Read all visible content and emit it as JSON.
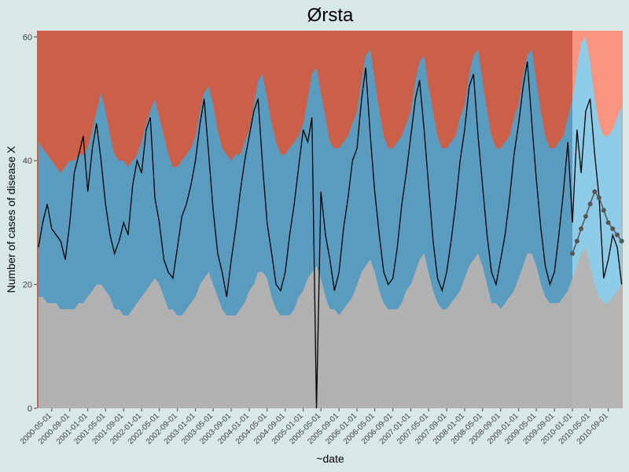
{
  "chart_data": {
    "type": "threshold-area",
    "title": "Ørsta",
    "xlabel": "~date",
    "ylabel": "Number of cases of disease X",
    "ylim": [
      0,
      61
    ],
    "yticks": [
      0,
      20,
      40,
      60
    ],
    "xlim": [
      "2000-01-22",
      "2010-12-08"
    ],
    "xticks": [
      "2000-05-01",
      "2000-09-01",
      "2001-01-01",
      "2001-05-01",
      "2001-09-01",
      "2002-01-01",
      "2002-05-01",
      "2002-09-01",
      "2003-01-01",
      "2003-05-01",
      "2003-09-01",
      "2004-01-01",
      "2004-05-01",
      "2004-09-01",
      "2005-01-01",
      "2005-05-01",
      "2005-09-01",
      "2006-01-01",
      "2006-05-01",
      "2006-09-01",
      "2007-01-01",
      "2007-05-01",
      "2007-09-01",
      "2008-01-01",
      "2008-05-01",
      "2008-09-01",
      "2009-01-01",
      "2009-05-01",
      "2009-09-01",
      "2010-01-01",
      "2010-05-01",
      "2010-09-01"
    ],
    "forecast_start": "2010-01-01",
    "colors": {
      "above": "#cb5f48",
      "band": "#5a9cc0",
      "below": "#b1b1b1",
      "above_forecast": "#f7957f",
      "band_forecast": "#8ecbe6",
      "below_forecast": "#b5b5b5",
      "line": "#000000",
      "forecast_points": "#555555"
    },
    "x": [
      "2000-02-01",
      "2000-03-01",
      "2000-04-01",
      "2000-05-01",
      "2000-06-01",
      "2000-07-01",
      "2000-08-01",
      "2000-09-01",
      "2000-10-01",
      "2000-11-01",
      "2000-12-01",
      "2001-01-01",
      "2001-02-01",
      "2001-03-01",
      "2001-04-01",
      "2001-05-01",
      "2001-06-01",
      "2001-07-01",
      "2001-08-01",
      "2001-09-01",
      "2001-10-01",
      "2001-11-01",
      "2001-12-01",
      "2002-01-01",
      "2002-02-01",
      "2002-03-01",
      "2002-04-01",
      "2002-05-01",
      "2002-06-01",
      "2002-07-01",
      "2002-08-01",
      "2002-09-01",
      "2002-10-01",
      "2002-11-01",
      "2002-12-01",
      "2003-01-01",
      "2003-02-01",
      "2003-03-01",
      "2003-04-01",
      "2003-05-01",
      "2003-06-01",
      "2003-07-01",
      "2003-08-01",
      "2003-09-01",
      "2003-10-01",
      "2003-11-01",
      "2003-12-01",
      "2004-01-01",
      "2004-02-01",
      "2004-03-01",
      "2004-04-01",
      "2004-05-01",
      "2004-06-01",
      "2004-07-01",
      "2004-08-01",
      "2004-09-01",
      "2004-10-01",
      "2004-11-01",
      "2004-12-01",
      "2005-01-01",
      "2005-02-01",
      "2005-03-01",
      "2005-04-01",
      "2005-05-01",
      "2005-06-01",
      "2005-07-01",
      "2005-08-01",
      "2005-09-01",
      "2005-10-01",
      "2005-11-01",
      "2005-12-01",
      "2006-01-01",
      "2006-02-01",
      "2006-03-01",
      "2006-04-01",
      "2006-05-01",
      "2006-06-01",
      "2006-07-01",
      "2006-08-01",
      "2006-09-01",
      "2006-10-01",
      "2006-11-01",
      "2006-12-01",
      "2007-01-01",
      "2007-02-01",
      "2007-03-01",
      "2007-04-01",
      "2007-05-01",
      "2007-06-01",
      "2007-07-01",
      "2007-08-01",
      "2007-09-01",
      "2007-10-01",
      "2007-11-01",
      "2007-12-01",
      "2008-01-01",
      "2008-02-01",
      "2008-03-01",
      "2008-04-01",
      "2008-05-01",
      "2008-06-01",
      "2008-07-01",
      "2008-08-01",
      "2008-09-01",
      "2008-10-01",
      "2008-11-01",
      "2008-12-01",
      "2009-01-01",
      "2009-02-01",
      "2009-03-01",
      "2009-04-01",
      "2009-05-01",
      "2009-06-01",
      "2009-07-01",
      "2009-08-01",
      "2009-09-01",
      "2009-10-01",
      "2009-11-01",
      "2009-12-01",
      "2010-01-01",
      "2010-02-01",
      "2010-03-01",
      "2010-04-01",
      "2010-05-01",
      "2010-06-01",
      "2010-07-01",
      "2010-08-01",
      "2010-09-01",
      "2010-10-01",
      "2010-11-01",
      "2010-12-01"
    ],
    "upper": [
      43,
      42,
      41,
      40,
      39,
      38,
      39,
      40,
      40,
      41,
      41,
      42,
      45,
      48,
      51,
      48,
      44,
      41,
      40,
      40,
      39,
      40,
      41,
      43,
      46,
      48,
      50,
      47,
      44,
      41,
      39,
      39,
      40,
      41,
      42,
      44,
      48,
      51,
      52,
      49,
      45,
      42,
      41,
      40,
      41,
      41,
      43,
      45,
      49,
      53,
      54,
      50,
      46,
      43,
      41,
      41,
      42,
      43,
      44,
      46,
      50,
      54,
      55,
      51,
      47,
      43,
      42,
      42,
      43,
      44,
      46,
      48,
      53,
      57,
      58,
      53,
      48,
      44,
      42,
      42,
      43,
      44,
      46,
      48,
      53,
      56,
      57,
      52,
      48,
      44,
      42,
      42,
      43,
      44,
      47,
      49,
      54,
      57,
      58,
      53,
      48,
      44,
      42,
      42,
      43,
      44,
      47,
      49,
      54,
      57,
      58,
      53,
      48,
      44,
      42,
      42,
      43,
      44,
      47,
      50,
      55,
      59,
      60,
      56,
      50,
      46,
      44,
      44,
      45,
      47,
      49
    ],
    "lower": [
      18,
      18,
      17,
      17,
      17,
      16,
      16,
      16,
      16,
      17,
      17,
      18,
      19,
      20,
      20,
      19,
      18,
      16,
      16,
      15,
      15,
      16,
      17,
      18,
      19,
      20,
      21,
      20,
      18,
      16,
      16,
      15,
      15,
      16,
      17,
      18,
      20,
      21,
      22,
      20,
      18,
      16,
      15,
      15,
      15,
      16,
      17,
      19,
      20,
      22,
      22,
      21,
      18,
      16,
      15,
      15,
      15,
      16,
      18,
      19,
      21,
      22,
      23,
      21,
      18,
      16,
      16,
      15,
      16,
      17,
      18,
      20,
      22,
      23,
      24,
      22,
      19,
      17,
      16,
      16,
      16,
      17,
      19,
      20,
      22,
      24,
      25,
      22,
      19,
      17,
      16,
      16,
      17,
      18,
      19,
      21,
      23,
      24,
      25,
      23,
      20,
      17,
      17,
      16,
      17,
      18,
      19,
      21,
      23,
      25,
      25,
      23,
      20,
      18,
      17,
      17,
      17,
      18,
      19,
      21,
      23,
      25,
      26,
      23,
      20,
      18,
      17,
      17,
      18,
      19,
      20
    ],
    "values": [
      26,
      30,
      33,
      29,
      28,
      27,
      24,
      30,
      38,
      41,
      44,
      35,
      42,
      46,
      40,
      33,
      28,
      25,
      27,
      30,
      28,
      36,
      40,
      38,
      45,
      47,
      34,
      30,
      24,
      22,
      21,
      26,
      31,
      33,
      36,
      40,
      46,
      50,
      41,
      32,
      25,
      22,
      18,
      24,
      29,
      35,
      40,
      44,
      48,
      50,
      39,
      30,
      25,
      20,
      19,
      22,
      28,
      33,
      39,
      45,
      43,
      47,
      0,
      35,
      28,
      24,
      19,
      22,
      29,
      34,
      40,
      42,
      50,
      55,
      44,
      35,
      28,
      22,
      20,
      21,
      26,
      33,
      38,
      44,
      50,
      53,
      45,
      36,
      27,
      21,
      19,
      22,
      27,
      33,
      40,
      45,
      52,
      54,
      44,
      36,
      28,
      22,
      20,
      24,
      28,
      34,
      41,
      46,
      52,
      56,
      46,
      37,
      29,
      23,
      20,
      22,
      28,
      35,
      43,
      30,
      45,
      38,
      48,
      50,
      41,
      34,
      21,
      24,
      28,
      26,
      20
    ],
    "forecast": {
      "x": [
        "2010-01-01",
        "2010-02-01",
        "2010-03-01",
        "2010-04-01",
        "2010-05-01",
        "2010-06-01",
        "2010-07-01",
        "2010-08-01",
        "2010-09-01",
        "2010-10-01",
        "2010-11-01",
        "2010-12-01"
      ],
      "values": [
        25,
        27,
        29,
        31,
        33,
        35,
        34,
        32,
        30,
        29,
        28,
        27
      ]
    }
  }
}
